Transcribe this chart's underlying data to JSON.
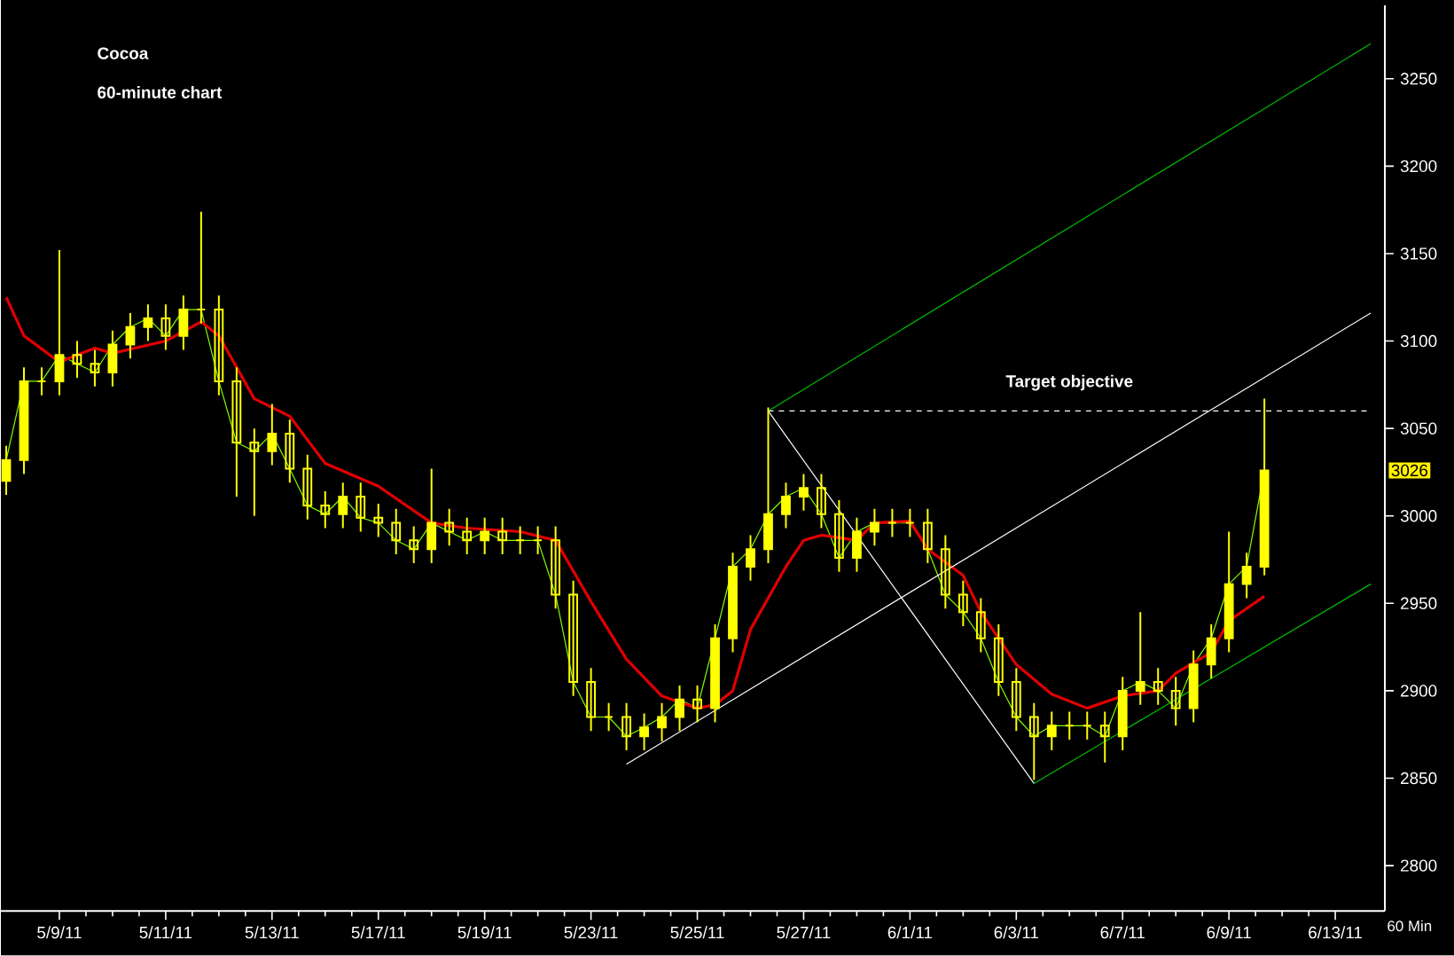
{
  "chart_data": {
    "type": "candlestick",
    "title": "Cocoa",
    "subtitle": "60-minute chart",
    "categories": [
      null,
      null,
      null,
      "5/9/11",
      null,
      null,
      null,
      null,
      null,
      "5/11/11",
      null,
      null,
      null,
      null,
      null,
      "5/13/11",
      null,
      null,
      null,
      null,
      null,
      "5/17/11",
      null,
      null,
      null,
      null,
      null,
      "5/19/11",
      null,
      null,
      null,
      null,
      null,
      "5/23/11",
      null,
      null,
      null,
      null,
      null,
      "5/25/11",
      null,
      null,
      null,
      null,
      null,
      "5/27/11",
      null,
      null,
      null,
      null,
      null,
      "6/1/11",
      null,
      null,
      null,
      null,
      null,
      "6/3/11",
      null,
      null,
      null,
      null,
      null,
      "6/7/11",
      null,
      null,
      null,
      null,
      null,
      "6/9/11",
      null,
      null,
      null,
      null,
      null,
      "6/13/11",
      null,
      null
    ],
    "ylim": [
      2774,
      3292
    ],
    "yticks": [
      2800,
      2850,
      2900,
      2950,
      3000,
      3050,
      3100,
      3150,
      3200,
      3250
    ],
    "grid": false,
    "annotations": [
      "60 Min",
      {
        "text": "3026",
        "y": 3026
      }
    ],
    "series": [
      {
        "type": "line",
        "color": "#80ff00",
        "values": [
          3032,
          3077,
          3077,
          3092,
          3087,
          3082,
          3098,
          3108,
          3113,
          3103,
          3118,
          3118,
          3077,
          3042,
          3037,
          3047,
          3027,
          3006,
          3001,
          3011,
          2999,
          2996,
          2986,
          2981,
          2996,
          2991,
          2986,
          2991,
          2986,
          2986,
          2986,
          2955,
          2905,
          2885,
          2885,
          2874,
          2879,
          2885,
          2895,
          2890,
          2930,
          2971,
          2981,
          3001,
          3011,
          3016,
          3001,
          2976,
          2991,
          2996,
          2996,
          2996,
          2981,
          2955,
          2945,
          2930,
          2905,
          2885,
          2874,
          2880,
          2880,
          2880,
          2874,
          2900,
          2905,
          2900,
          2890,
          2915,
          2930,
          2961,
          2971,
          3026,
          null,
          null,
          null,
          null,
          null,
          null
        ]
      },
      {
        "type": "line",
        "color": "#e00000",
        "values": [
          3125,
          3103,
          null,
          3088,
          null,
          3096,
          3093,
          null,
          null,
          3100,
          null,
          3111,
          3103,
          null,
          3067,
          null,
          3057,
          null,
          3030,
          null,
          null,
          3017,
          null,
          null,
          2996,
          null,
          2993,
          null,
          null,
          2991,
          null,
          2986,
          null,
          2951,
          null,
          2918,
          null,
          2897,
          null,
          2890,
          2892,
          2900,
          2935,
          null,
          2971,
          2986,
          2989,
          null,
          2986,
          2996,
          null,
          2997,
          2981,
          null,
          2966,
          2945,
          null,
          2915,
          null,
          2898,
          null,
          2890,
          null,
          2897,
          null,
          2900,
          2910,
          null,
          2922,
          2940,
          null,
          2954,
          null,
          null,
          null,
          null,
          null,
          null
        ]
      },
      {
        "type": "line",
        "color": "#00c000",
        "values": [
          null,
          null,
          null,
          null,
          null,
          null,
          null,
          null,
          null,
          null,
          null,
          null,
          null,
          null,
          null,
          null,
          null,
          null,
          null,
          null,
          null,
          null,
          null,
          null,
          null,
          null,
          null,
          null,
          null,
          null,
          null,
          null,
          null,
          null,
          null,
          null,
          null,
          null,
          null,
          null,
          null,
          null,
          null,
          3060,
          null,
          null,
          null,
          null,
          null,
          null,
          null,
          null,
          null,
          null,
          null,
          null,
          null,
          null,
          null,
          null,
          null,
          null,
          null,
          null,
          null,
          null,
          null,
          null,
          null,
          null,
          null,
          null,
          null,
          null,
          null,
          null,
          null,
          3270
        ]
      },
      {
        "type": "line",
        "color": "#ffffff",
        "values": [
          null,
          null,
          null,
          null,
          null,
          null,
          null,
          null,
          null,
          null,
          null,
          null,
          null,
          null,
          null,
          null,
          null,
          null,
          null,
          null,
          null,
          null,
          null,
          null,
          null,
          null,
          null,
          null,
          null,
          null,
          null,
          null,
          null,
          null,
          null,
          2858,
          null,
          null,
          null,
          null,
          null,
          null,
          null,
          null,
          null,
          null,
          null,
          null,
          null,
          null,
          null,
          null,
          null,
          null,
          null,
          null,
          null,
          null,
          null,
          null,
          null,
          null,
          null,
          null,
          null,
          null,
          null,
          null,
          null,
          null,
          null,
          null,
          null,
          null,
          null,
          null,
          null,
          3116
        ]
      },
      {
        "type": "line",
        "color": "#00c000",
        "values": [
          null,
          null,
          null,
          null,
          null,
          null,
          null,
          null,
          null,
          null,
          null,
          null,
          null,
          null,
          null,
          null,
          null,
          null,
          null,
          null,
          null,
          null,
          null,
          null,
          null,
          null,
          null,
          null,
          null,
          null,
          null,
          null,
          null,
          null,
          null,
          null,
          null,
          null,
          null,
          null,
          null,
          null,
          null,
          null,
          null,
          null,
          null,
          null,
          null,
          null,
          null,
          null,
          null,
          null,
          null,
          null,
          null,
          null,
          2847,
          null,
          null,
          null,
          null,
          null,
          null,
          null,
          null,
          null,
          null,
          null,
          null,
          null,
          null,
          null,
          null,
          null,
          null,
          2961
        ]
      },
      {
        "type": "line",
        "color": "#ffffff",
        "values": [
          null,
          null,
          null,
          null,
          null,
          null,
          null,
          null,
          null,
          null,
          null,
          null,
          null,
          null,
          null,
          null,
          null,
          null,
          null,
          null,
          null,
          null,
          null,
          null,
          null,
          null,
          null,
          null,
          null,
          null,
          null,
          null,
          null,
          null,
          null,
          null,
          null,
          null,
          null,
          null,
          null,
          null,
          null,
          3060,
          null,
          null,
          null,
          null,
          null,
          null,
          null,
          null,
          null,
          null,
          null,
          null,
          null,
          null,
          2847,
          null,
          null,
          null,
          null,
          null,
          null,
          null,
          null,
          null,
          null,
          null,
          null,
          null,
          null,
          null,
          null,
          null,
          null,
          null
        ]
      },
      {
        "type": "line",
        "name": "Target objective",
        "color": "#ffffff",
        "line_style": "dashed",
        "values": [
          null,
          null,
          null,
          null,
          null,
          null,
          null,
          null,
          null,
          null,
          null,
          null,
          null,
          null,
          null,
          null,
          null,
          null,
          null,
          null,
          null,
          null,
          null,
          null,
          null,
          null,
          null,
          null,
          null,
          null,
          null,
          null,
          null,
          null,
          null,
          null,
          null,
          null,
          null,
          null,
          null,
          null,
          null,
          3060,
          null,
          null,
          null,
          null,
          null,
          null,
          null,
          null,
          null,
          null,
          null,
          null,
          null,
          null,
          null,
          null,
          null,
          null,
          null,
          null,
          null,
          null,
          null,
          null,
          null,
          null,
          null,
          null,
          null,
          null,
          null,
          null,
          null,
          3060
        ]
      },
      {
        "color": "#ffff00",
        "ohlc": [
          [
            3020,
            3040,
            3012,
            3032
          ],
          [
            3032,
            3085,
            3024,
            3077
          ],
          [
            3077,
            3085,
            3069,
            3077
          ],
          [
            3077,
            3152,
            3069,
            3092
          ],
          [
            3092,
            3100,
            3079,
            3087
          ],
          [
            3087,
            3095,
            3074,
            3082
          ],
          [
            3082,
            3106,
            3074,
            3098
          ],
          [
            3098,
            3116,
            3090,
            3108
          ],
          [
            3108,
            3121,
            3100,
            3113
          ],
          [
            3113,
            3121,
            3095,
            3103
          ],
          [
            3103,
            3126,
            3095,
            3118
          ],
          [
            3118,
            3174,
            3110,
            3118
          ],
          [
            3118,
            3126,
            3069,
            3077
          ],
          [
            3077,
            3085,
            3011,
            3042
          ],
          [
            3042,
            3050,
            3000,
            3037
          ],
          [
            3037,
            3064,
            3029,
            3047
          ],
          [
            3047,
            3055,
            3019,
            3027
          ],
          [
            3027,
            3035,
            2998,
            3006
          ],
          [
            3006,
            3014,
            2993,
            3001
          ],
          [
            3001,
            3019,
            2993,
            3011
          ],
          [
            3011,
            3019,
            2991,
            2999
          ],
          [
            2999,
            3007,
            2988,
            2996
          ],
          [
            2996,
            3004,
            2978,
            2986
          ],
          [
            2986,
            2994,
            2973,
            2981
          ],
          [
            2981,
            3027,
            2973,
            2996
          ],
          [
            2996,
            3004,
            2983,
            2991
          ],
          [
            2991,
            2999,
            2978,
            2986
          ],
          [
            2986,
            2999,
            2978,
            2991
          ],
          [
            2991,
            2999,
            2978,
            2986
          ],
          [
            2986,
            2994,
            2978,
            2986
          ],
          [
            2986,
            2994,
            2978,
            2986
          ],
          [
            2986,
            2994,
            2947,
            2955
          ],
          [
            2955,
            2963,
            2897,
            2905
          ],
          [
            2905,
            2913,
            2877,
            2885
          ],
          [
            2885,
            2893,
            2877,
            2885
          ],
          [
            2885,
            2893,
            2866,
            2874
          ],
          [
            2874,
            2887,
            2866,
            2879
          ],
          [
            2879,
            2893,
            2871,
            2885
          ],
          [
            2885,
            2903,
            2877,
            2895
          ],
          [
            2895,
            2903,
            2882,
            2890
          ],
          [
            2890,
            2938,
            2882,
            2930
          ],
          [
            2930,
            2979,
            2922,
            2971
          ],
          [
            2971,
            2989,
            2963,
            2981
          ],
          [
            2981,
            3062,
            2973,
            3001
          ],
          [
            3001,
            3019,
            2993,
            3011
          ],
          [
            3011,
            3024,
            3003,
            3016
          ],
          [
            3016,
            3024,
            2993,
            3001
          ],
          [
            3001,
            3009,
            2968,
            2976
          ],
          [
            2976,
            2999,
            2968,
            2991
          ],
          [
            2991,
            3004,
            2983,
            2996
          ],
          [
            2996,
            3004,
            2988,
            2996
          ],
          [
            2996,
            3004,
            2988,
            2996
          ],
          [
            2996,
            3004,
            2973,
            2981
          ],
          [
            2981,
            2989,
            2947,
            2955
          ],
          [
            2955,
            2963,
            2937,
            2945
          ],
          [
            2945,
            2953,
            2922,
            2930
          ],
          [
            2930,
            2938,
            2897,
            2905
          ],
          [
            2905,
            2913,
            2877,
            2885
          ],
          [
            2885,
            2893,
            2849,
            2874
          ],
          [
            2874,
            2888,
            2866,
            2880
          ],
          [
            2880,
            2888,
            2872,
            2880
          ],
          [
            2880,
            2888,
            2872,
            2880
          ],
          [
            2880,
            2888,
            2859,
            2874
          ],
          [
            2874,
            2908,
            2866,
            2900
          ],
          [
            2900,
            2945,
            2892,
            2905
          ],
          [
            2905,
            2913,
            2892,
            2900
          ],
          [
            2900,
            2908,
            2880,
            2890
          ],
          [
            2890,
            2923,
            2882,
            2915
          ],
          [
            2915,
            2938,
            2907,
            2930
          ],
          [
            2930,
            2991,
            2922,
            2961
          ],
          [
            2961,
            2979,
            2953,
            2971
          ],
          [
            2971,
            3067,
            2966,
            3026
          ],
          null,
          null,
          null,
          null,
          null,
          null
        ]
      }
    ]
  }
}
